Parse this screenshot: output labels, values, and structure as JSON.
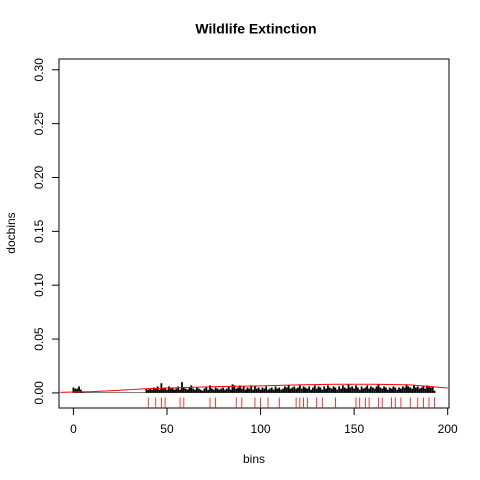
{
  "chart_data": {
    "type": "spike",
    "title": "Wildlife Extinction",
    "xlabel": "bins",
    "ylabel": "docbins",
    "color": "#000000",
    "x": [
      0,
      1,
      2,
      3,
      4,
      5,
      6,
      7,
      8,
      9,
      10,
      11,
      12,
      13,
      14,
      15,
      16,
      17,
      18,
      19,
      20,
      21,
      22,
      23,
      24,
      25,
      26,
      27,
      28,
      29,
      30,
      31,
      32,
      33,
      34,
      35,
      36,
      37,
      38,
      39,
      40,
      41,
      42,
      43,
      44,
      45,
      46,
      47,
      48,
      49,
      50,
      51,
      52,
      53,
      54,
      55,
      56,
      57,
      58,
      59,
      60,
      61,
      62,
      63,
      64,
      65,
      66,
      67,
      68,
      69,
      70,
      71,
      72,
      73,
      74,
      75,
      76,
      77,
      78,
      79,
      80,
      81,
      82,
      83,
      84,
      85,
      86,
      87,
      88,
      89,
      90,
      91,
      92,
      93,
      94,
      95,
      96,
      97,
      98,
      99,
      100,
      101,
      102,
      103,
      104,
      105,
      106,
      107,
      108,
      109,
      110,
      111,
      112,
      113,
      114,
      115,
      116,
      117,
      118,
      119,
      120,
      121,
      122,
      123,
      124,
      125,
      126,
      127,
      128,
      129,
      130,
      131,
      132,
      133,
      134,
      135,
      136,
      137,
      138,
      139,
      140,
      141,
      142,
      143,
      144,
      145,
      146,
      147,
      148,
      149,
      150,
      151,
      152,
      153,
      154,
      155,
      156,
      157,
      158,
      159,
      160,
      161,
      162,
      163,
      164,
      165,
      166,
      167,
      168,
      169,
      170,
      171,
      172,
      173,
      174,
      175,
      176,
      177,
      178,
      179,
      180,
      181,
      182,
      183,
      184,
      185,
      186,
      187,
      188,
      189,
      190,
      191,
      192,
      193
    ],
    "values": [
      0.005,
      0.004,
      0.004,
      0.006,
      0.003,
      0.001,
      0.0005,
      0.0005,
      0.0005,
      0.0005,
      0.0005,
      0.0005,
      0.0005,
      0.0005,
      0.0005,
      0.0005,
      0.0005,
      0.0005,
      0.0005,
      0.0005,
      0.0005,
      0.0005,
      0.0005,
      0.0005,
      0.0005,
      0.0005,
      0.0005,
      0.0005,
      0.0005,
      0.0005,
      0.0005,
      0.0005,
      0.0005,
      0.0005,
      0.0005,
      0.0005,
      0.0005,
      0.0005,
      0.0005,
      0.004,
      0.003,
      0.004,
      0.003,
      0.005,
      0.004,
      0.006,
      0.003,
      0.009,
      0.004,
      0.005,
      0.003,
      0.006,
      0.004,
      0.005,
      0.003,
      0.004,
      0.006,
      0.003,
      0.01,
      0.005,
      0.004,
      0.003,
      0.005,
      0.007,
      0.004,
      0.003,
      0.005,
      0.004,
      0.003,
      0.002,
      0.004,
      0.006,
      0.003,
      0.007,
      0.004,
      0.003,
      0.005,
      0.004,
      0.003,
      0.004,
      0.005,
      0.003,
      0.004,
      0.006,
      0.003,
      0.008,
      0.007,
      0.004,
      0.005,
      0.007,
      0.004,
      0.006,
      0.003,
      0.005,
      0.004,
      0.007,
      0.003,
      0.006,
      0.004,
      0.005,
      0.003,
      0.005,
      0.004,
      0.006,
      0.003,
      0.004,
      0.005,
      0.003,
      0.006,
      0.004,
      0.005,
      0.003,
      0.004,
      0.006,
      0.005,
      0.007,
      0.004,
      0.005,
      0.006,
      0.004,
      0.005,
      0.007,
      0.004,
      0.006,
      0.005,
      0.004,
      0.006,
      0.003,
      0.005,
      0.007,
      0.004,
      0.006,
      0.005,
      0.003,
      0.006,
      0.004,
      0.007,
      0.005,
      0.004,
      0.006,
      0.005,
      0.003,
      0.006,
      0.004,
      0.007,
      0.005,
      0.004,
      0.008,
      0.005,
      0.006,
      0.004,
      0.007,
      0.005,
      0.003,
      0.006,
      0.004,
      0.005,
      0.007,
      0.004,
      0.006,
      0.005,
      0.004,
      0.006,
      0.008,
      0.005,
      0.004,
      0.006,
      0.005,
      0.003,
      0.005,
      0.004,
      0.006,
      0.005,
      0.003,
      0.005,
      0.004,
      0.006,
      0.005,
      0.008,
      0.006,
      0.005,
      0.004,
      0.007,
      0.005,
      0.006,
      0.004,
      0.005,
      0.006,
      0.004,
      0.007,
      0.006,
      0.005,
      0.006,
      0.002
    ],
    "density": {
      "color": "#ff0000",
      "x": [
        -7,
        0,
        10,
        20,
        30,
        40,
        60,
        80,
        100,
        120,
        140,
        160,
        180,
        200
      ],
      "values": [
        0.0005,
        0.0008,
        0.0012,
        0.002,
        0.003,
        0.004,
        0.005,
        0.006,
        0.0065,
        0.0075,
        0.008,
        0.008,
        0.0075,
        0.0046
      ]
    },
    "rug": {
      "color": "#ff0000",
      "x": [
        40,
        44,
        47,
        49,
        57,
        59,
        73,
        76,
        87,
        90,
        97,
        100,
        104,
        110,
        119,
        121,
        123,
        125,
        130,
        133,
        140,
        151,
        153,
        156,
        158,
        163,
        165,
        170,
        172,
        175,
        180,
        184,
        187,
        190,
        193
      ]
    },
    "xlim": [
      -7.7,
      200.7
    ],
    "ylim": [
      -0.014,
      0.31
    ],
    "xticks": [
      0,
      50,
      100,
      150,
      200
    ],
    "yticks": [
      {
        "value": 0,
        "label": "0.00"
      },
      {
        "value": 0.05,
        "label": "0.05"
      },
      {
        "value": 0.1,
        "label": "0.10"
      },
      {
        "value": 0.15,
        "label": "0.15"
      },
      {
        "value": 0.2,
        "label": "0.20"
      },
      {
        "value": 0.25,
        "label": "0.25"
      },
      {
        "value": 0.3,
        "label": "0.30"
      }
    ]
  }
}
